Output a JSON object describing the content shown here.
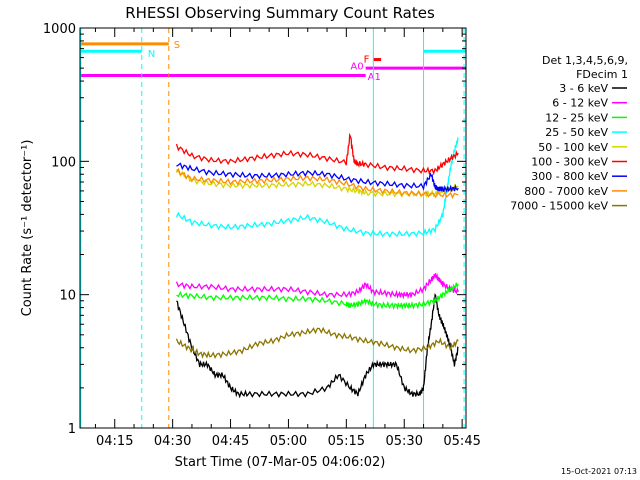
{
  "chart_data": {
    "type": "line",
    "title": "RHESSI Observing Summary Count Rates",
    "xlabel": "Start Time (07-Mar-05 04:06:02)",
    "ylabel": "Count Rate (s⁻¹ detector⁻¹)",
    "yscale": "log",
    "ylim": [
      1,
      1000
    ],
    "xlim_min": [
      6.0,
      106.0
    ],
    "x_ticks": [
      {
        "min": 15,
        "label": "04:15"
      },
      {
        "min": 30,
        "label": "04:30"
      },
      {
        "min": 45,
        "label": "04:45"
      },
      {
        "min": 60,
        "label": "05:00"
      },
      {
        "min": 75,
        "label": "05:15"
      },
      {
        "min": 90,
        "label": "05:30"
      },
      {
        "min": 105,
        "label": "05:45"
      }
    ],
    "y_ticks": [
      {
        "value": 1,
        "label": "1"
      },
      {
        "value": 10,
        "label": "10"
      },
      {
        "value": 100,
        "label": "100"
      },
      {
        "value": 1000,
        "label": "1000"
      }
    ],
    "legend_title": [
      "Det 1,3,4,5,6,9,",
      "FDecim 1"
    ],
    "legend_position": "right",
    "series": [
      {
        "name": "3 - 6 keV",
        "color": "#000000",
        "x": [
          31,
          33,
          35,
          37,
          39,
          41,
          43,
          45,
          47,
          50,
          55,
          60,
          65,
          70,
          73,
          76,
          78,
          80,
          82,
          84,
          86,
          88,
          90,
          92,
          94,
          95,
          96,
          97,
          98,
          99,
          100,
          101,
          102,
          103,
          104
        ],
        "y": [
          9,
          6,
          4,
          3,
          3,
          2.5,
          2.5,
          2,
          1.8,
          1.8,
          1.8,
          1.8,
          1.8,
          2,
          2.5,
          2,
          1.8,
          2.5,
          3,
          3,
          3,
          3,
          2,
          1.8,
          1.8,
          2,
          4,
          6,
          10,
          7,
          6,
          5,
          4,
          3,
          4
        ]
      },
      {
        "name": "6 - 12 keV",
        "color": "#ff00ff",
        "x": [
          31,
          35,
          40,
          45,
          50,
          55,
          60,
          65,
          70,
          75,
          78,
          80,
          82,
          85,
          88,
          90,
          92,
          95,
          97,
          98,
          99,
          100,
          102,
          104
        ],
        "y": [
          12,
          11.5,
          11.5,
          11,
          11,
          11,
          11,
          10.5,
          10,
          10,
          10.5,
          12,
          10.5,
          10.3,
          10,
          10,
          10,
          11,
          13,
          14,
          13,
          12,
          11,
          10.5
        ]
      },
      {
        "name": "12 - 25 keV",
        "color": "#00ff00",
        "x": [
          31,
          35,
          40,
          45,
          50,
          55,
          60,
          65,
          70,
          75,
          76,
          78,
          80,
          82,
          85,
          88,
          90,
          92,
          95,
          98,
          100,
          102,
          104
        ],
        "y": [
          10,
          9.8,
          9.5,
          9.5,
          9.5,
          9.5,
          9.3,
          9.3,
          9,
          8.5,
          8.3,
          8.5,
          9,
          8.5,
          8.3,
          8.3,
          8.3,
          8.3,
          8.5,
          9,
          10,
          11,
          12
        ]
      },
      {
        "name": "25 - 50 keV",
        "color": "#00ffff",
        "x": [
          31,
          35,
          40,
          45,
          50,
          55,
          60,
          65,
          70,
          75,
          80,
          85,
          90,
          95,
          98,
          100,
          101,
          102,
          103,
          104
        ],
        "y": [
          40,
          35,
          33,
          32,
          33,
          34,
          36,
          38,
          35,
          31,
          29,
          28.5,
          28.5,
          29,
          31,
          40,
          60,
          90,
          120,
          150
        ]
      },
      {
        "name": "50 - 100 keV",
        "color": "#d4d400",
        "x": [
          31,
          35,
          40,
          45,
          50,
          55,
          60,
          65,
          70,
          75,
          78,
          80,
          85,
          90,
          95,
          98,
          100,
          102,
          104
        ],
        "y": [
          85,
          72,
          68,
          66,
          66,
          66,
          67,
          68,
          66,
          62,
          60,
          58,
          57,
          57,
          57,
          57,
          60,
          62,
          64
        ]
      },
      {
        "name": "100 - 300 keV",
        "color": "#ff0000",
        "x": [
          31,
          35,
          40,
          45,
          50,
          55,
          60,
          65,
          70,
          75,
          76,
          77,
          78,
          80,
          85,
          90,
          95,
          98,
          100,
          102,
          104
        ],
        "y": [
          130,
          110,
          102,
          100,
          105,
          110,
          115,
          112,
          105,
          98,
          160,
          100,
          96,
          95,
          90,
          88,
          85,
          85,
          95,
          105,
          115
        ]
      },
      {
        "name": "300 - 800 keV",
        "color": "#0000ff",
        "x": [
          31,
          35,
          40,
          45,
          50,
          55,
          60,
          65,
          70,
          75,
          80,
          85,
          90,
          95,
          97,
          98,
          99,
          100,
          102,
          104
        ],
        "y": [
          95,
          88,
          82,
          80,
          78,
          78,
          80,
          82,
          80,
          74,
          70,
          68,
          66,
          65,
          80,
          64,
          62,
          62,
          62,
          63
        ]
      },
      {
        "name": "800 - 7000 keV",
        "color": "#ff8c00",
        "x": [
          31,
          35,
          40,
          45,
          50,
          55,
          60,
          65,
          70,
          75,
          80,
          85,
          90,
          95,
          100,
          104
        ],
        "y": [
          85,
          74,
          72,
          70,
          71,
          72,
          74,
          75,
          73,
          68,
          62,
          60,
          58,
          57,
          56,
          56
        ]
      },
      {
        "name": "7000 - 15000 keV",
        "color": "#8b7500",
        "x": [
          31,
          34,
          37,
          40,
          44,
          48,
          52,
          56,
          60,
          64,
          68,
          72,
          76,
          80,
          84,
          88,
          92,
          96,
          99,
          102,
          104
        ],
        "y": [
          4.5,
          4,
          3.6,
          3.5,
          3.6,
          3.8,
          4.3,
          4.5,
          5,
          5.2,
          5.5,
          5,
          4.8,
          4.5,
          4.3,
          4,
          3.8,
          4,
          4.5,
          4,
          4.5
        ]
      }
    ],
    "flag_bars": [
      {
        "label": "S",
        "color": "#ff8c00",
        "x": [
          6,
          29
        ],
        "y": 760
      },
      {
        "label": "N",
        "color": "#00ffff",
        "x": [
          6,
          22
        ],
        "y": 670
      },
      {
        "label": "N",
        "color": "#00ffff",
        "x": [
          95,
          106
        ],
        "y": 670
      },
      {
        "label": "F",
        "color": "#ff0000",
        "x": [
          82,
          84
        ],
        "y": 580
      },
      {
        "label": "A0",
        "color": "#ff00ff",
        "x": [
          6,
          80
        ],
        "y": 440
      },
      {
        "label": "A1",
        "color": "#ff00ff",
        "x": [
          80,
          106
        ],
        "y": 500
      }
    ],
    "vlines": [
      {
        "x": 6.2,
        "color": "#00ffff",
        "style": "solid"
      },
      {
        "x": 22,
        "color": "#00ffff",
        "style": "dashed"
      },
      {
        "x": 29,
        "color": "#ff8c00",
        "style": "dashed"
      },
      {
        "x": 82,
        "color": "#00ffff",
        "style": "solid"
      },
      {
        "x": 95,
        "color": "#00ffff",
        "style": "solid"
      },
      {
        "x": 105.5,
        "color": "#00ffff",
        "style": "dashed"
      }
    ]
  },
  "timestamp": "15-Oct-2021 07:13"
}
